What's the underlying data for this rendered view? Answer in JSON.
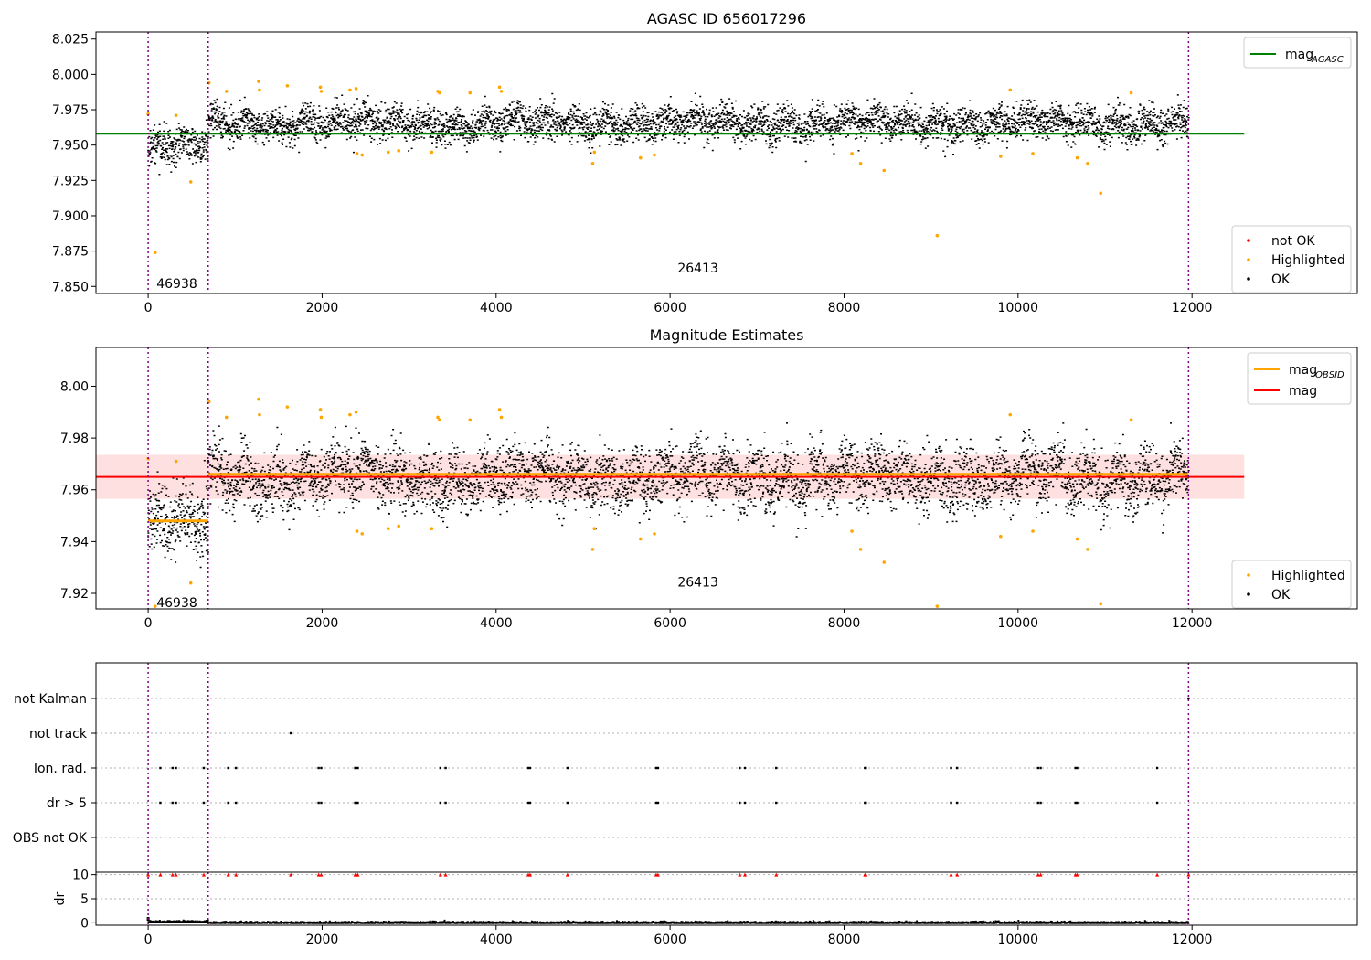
{
  "colors": {
    "ok": "#000000",
    "highlighted": "#ffa500",
    "not_ok": "#ff0000",
    "mag_agasc_line": "#008000",
    "mag_obsid_line": "#ffa500",
    "mag_line": "#ff0000",
    "mag_band": "#ffcccc",
    "obsid_marker": "#800080",
    "grid": "#b0b0b0"
  },
  "chart_data": [
    {
      "type": "scatter",
      "title": "AGASC ID 656017296",
      "xlim": [
        -600,
        13900
      ],
      "ylim": [
        7.845,
        8.03
      ],
      "xticks": [
        0,
        2000,
        4000,
        6000,
        8000,
        10000,
        12000
      ],
      "xtick_labels": [
        "0",
        "2000",
        "4000",
        "6000",
        "8000",
        "10000",
        "12000"
      ],
      "yticks": [
        7.85,
        7.875,
        7.9,
        7.925,
        7.95,
        7.975,
        8.0,
        8.025
      ],
      "ytick_labels": [
        "7.850",
        "7.875",
        "7.900",
        "7.925",
        "7.950",
        "7.975",
        "8.000",
        "8.025"
      ],
      "legend_lines": [
        {
          "name": "mag",
          "subscript": "AGASC",
          "color_key": "mag_agasc_line"
        }
      ],
      "legend_lines_position": "top-right",
      "legend_points": [
        {
          "name": "not OK",
          "color_key": "not_ok"
        },
        {
          "name": "Highlighted",
          "color_key": "highlighted"
        },
        {
          "name": "OK",
          "color_key": "ok"
        }
      ],
      "legend_points_position": "lower-right",
      "obsid_boundaries": [
        0,
        690,
        11960
      ],
      "obsid_labels": [
        {
          "text": "46938",
          "x": 330,
          "y": 7.852
        },
        {
          "text": "26413",
          "x": 6320,
          "y": 7.863
        }
      ],
      "reference_lines": [
        {
          "name": "mag_AGASC",
          "y": 7.958,
          "x_range": [
            -600,
            12600
          ],
          "color_key": "mag_agasc_line"
        }
      ],
      "ok_segments": [
        {
          "x_range": [
            0,
            690
          ],
          "mean": 7.949,
          "spread": 0.007
        },
        {
          "x_range": [
            690,
            11960
          ],
          "mean": 7.966,
          "spread": 0.006
        }
      ],
      "highlighted_points": [
        [
          0,
          7.972
        ],
        [
          80,
          7.874
        ],
        [
          320,
          7.971
        ],
        [
          490,
          7.924
        ],
        [
          700,
          7.994
        ],
        [
          900,
          7.988
        ],
        [
          1270,
          7.995
        ],
        [
          1280,
          7.989
        ],
        [
          1600,
          7.992
        ],
        [
          1980,
          7.991
        ],
        [
          1990,
          7.988
        ],
        [
          2320,
          7.989
        ],
        [
          2390,
          7.99
        ],
        [
          2400,
          7.944
        ],
        [
          2460,
          7.943
        ],
        [
          2760,
          7.945
        ],
        [
          2880,
          7.946
        ],
        [
          3260,
          7.945
        ],
        [
          3330,
          7.988
        ],
        [
          3350,
          7.987
        ],
        [
          3700,
          7.987
        ],
        [
          4040,
          7.991
        ],
        [
          4060,
          7.988
        ],
        [
          5110,
          7.937
        ],
        [
          5130,
          7.945
        ],
        [
          5660,
          7.941
        ],
        [
          5820,
          7.943
        ],
        [
          8090,
          7.944
        ],
        [
          8190,
          7.937
        ],
        [
          8460,
          7.932
        ],
        [
          9070,
          7.886
        ],
        [
          9800,
          7.942
        ],
        [
          9910,
          7.989
        ],
        [
          10170,
          7.944
        ],
        [
          10680,
          7.941
        ],
        [
          10800,
          7.937
        ],
        [
          10950,
          7.916
        ],
        [
          11300,
          7.987
        ]
      ],
      "not_ok_points": []
    },
    {
      "type": "scatter",
      "title": "Magnitude Estimates",
      "xlim": [
        -600,
        13900
      ],
      "ylim": [
        7.914,
        8.015
      ],
      "xticks": [
        0,
        2000,
        4000,
        6000,
        8000,
        10000,
        12000
      ],
      "xtick_labels": [
        "0",
        "2000",
        "4000",
        "6000",
        "8000",
        "10000",
        "12000"
      ],
      "yticks": [
        7.92,
        7.94,
        7.96,
        7.98,
        8.0
      ],
      "ytick_labels": [
        "7.92",
        "7.94",
        "7.96",
        "7.98",
        "8.00"
      ],
      "legend_lines": [
        {
          "name": "mag",
          "subscript": "OBSID",
          "color_key": "mag_obsid_line"
        },
        {
          "name": "mag",
          "subscript": "",
          "color_key": "mag_line"
        }
      ],
      "legend_lines_position": "top-right",
      "legend_points": [
        {
          "name": "Highlighted",
          "color_key": "highlighted"
        },
        {
          "name": "OK",
          "color_key": "ok"
        }
      ],
      "legend_points_position": "lower-right",
      "obsid_boundaries": [
        0,
        690,
        11960
      ],
      "obsid_labels": [
        {
          "text": "46938",
          "x": 330,
          "y": 7.9165
        },
        {
          "text": "26413",
          "x": 6320,
          "y": 7.9245
        }
      ],
      "mag": 7.965,
      "mag_band": [
        7.9565,
        7.9735
      ],
      "mag_obsid": [
        {
          "x_range": [
            0,
            690
          ],
          "y": 7.948
        },
        {
          "x_range": [
            690,
            11960
          ],
          "y": 7.966
        }
      ],
      "ok_segments": [
        {
          "x_range": [
            0,
            690
          ],
          "mean": 7.947,
          "spread": 0.007
        },
        {
          "x_range": [
            690,
            11960
          ],
          "mean": 7.965,
          "spread": 0.006
        }
      ],
      "highlighted_points": [
        [
          0,
          7.972
        ],
        [
          80,
          7.915
        ],
        [
          320,
          7.971
        ],
        [
          490,
          7.924
        ],
        [
          700,
          7.994
        ],
        [
          900,
          7.988
        ],
        [
          1270,
          7.995
        ],
        [
          1280,
          7.989
        ],
        [
          1600,
          7.992
        ],
        [
          1980,
          7.991
        ],
        [
          1990,
          7.988
        ],
        [
          2320,
          7.989
        ],
        [
          2390,
          7.99
        ],
        [
          2400,
          7.944
        ],
        [
          2460,
          7.943
        ],
        [
          2760,
          7.945
        ],
        [
          2880,
          7.946
        ],
        [
          3260,
          7.945
        ],
        [
          3330,
          7.988
        ],
        [
          3350,
          7.987
        ],
        [
          3700,
          7.987
        ],
        [
          4040,
          7.991
        ],
        [
          4060,
          7.988
        ],
        [
          5110,
          7.937
        ],
        [
          5130,
          7.945
        ],
        [
          5660,
          7.941
        ],
        [
          5820,
          7.943
        ],
        [
          8090,
          7.944
        ],
        [
          8190,
          7.937
        ],
        [
          8460,
          7.932
        ],
        [
          9070,
          7.915
        ],
        [
          9800,
          7.942
        ],
        [
          9910,
          7.989
        ],
        [
          10170,
          7.944
        ],
        [
          10680,
          7.941
        ],
        [
          10800,
          7.937
        ],
        [
          10950,
          7.916
        ],
        [
          11300,
          7.987
        ]
      ]
    },
    {
      "type": "scatter",
      "title": "",
      "xlim": [
        -600,
        13900
      ],
      "categories": [
        "not Kalman",
        "not track",
        "Ion. rad.",
        "dr > 5",
        "OBS not OK"
      ],
      "flags": {
        "not Kalman": [
          11960
        ],
        "not track": [
          1640
        ],
        "Ion. rad.": [
          140,
          280,
          320,
          640,
          920,
          1010,
          1960,
          1990,
          2380,
          2390,
          2410,
          3360,
          3420,
          4370,
          4390,
          4820,
          5840,
          5860,
          6800,
          6860,
          7220,
          8240,
          8250,
          9230,
          9300,
          10230,
          10260,
          10660,
          10680,
          11600
        ],
        "dr > 5": [
          140,
          280,
          320,
          640,
          920,
          1010,
          1960,
          1990,
          2380,
          2390,
          2410,
          3360,
          3420,
          4370,
          4390,
          4820,
          5840,
          5860,
          6800,
          6860,
          7220,
          8240,
          8250,
          9230,
          9300,
          10230,
          10260,
          10660,
          10680,
          11600
        ],
        "OBS not OK": []
      },
      "obsid_boundaries": [
        0,
        690,
        11960
      ]
    },
    {
      "type": "scatter",
      "title": "",
      "ylabel": "dr",
      "xlim": [
        -600,
        13900
      ],
      "ylim": [
        -0.5,
        10.5
      ],
      "xticks": [
        0,
        2000,
        4000,
        6000,
        8000,
        10000,
        12000
      ],
      "xtick_labels": [
        "0",
        "2000",
        "4000",
        "6000",
        "8000",
        "10000",
        "12000"
      ],
      "yticks": [
        0,
        5,
        10
      ],
      "ytick_labels": [
        "0",
        "5",
        "10"
      ],
      "dr_typical": [
        0,
        0.6
      ],
      "dr_clipped_at": 10,
      "dr_clipped_x": [
        0,
        140,
        280,
        320,
        640,
        920,
        1010,
        1640,
        1960,
        1990,
        2380,
        2390,
        2410,
        3360,
        3420,
        4370,
        4390,
        4820,
        5840,
        5860,
        6800,
        6860,
        7220,
        8240,
        8250,
        9230,
        9300,
        10230,
        10260,
        10660,
        10680,
        11600,
        11960
      ],
      "obsid_boundaries": [
        0,
        690,
        11960
      ]
    }
  ]
}
